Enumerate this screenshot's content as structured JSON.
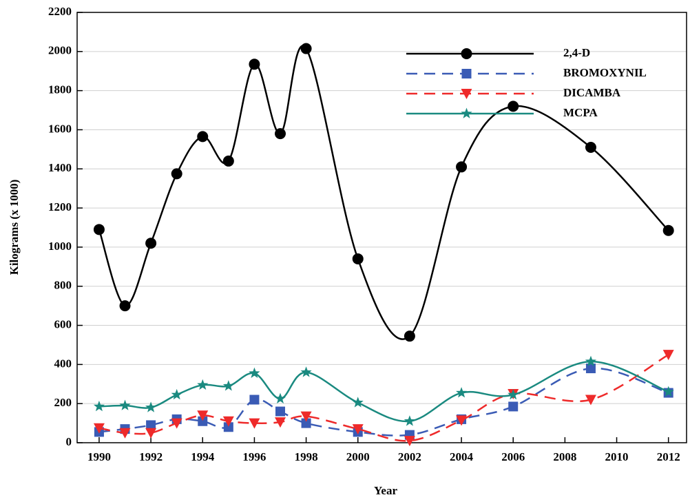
{
  "chart_data": {
    "type": "line",
    "x_label": "Year",
    "y_label": "Kilograms (x 1000)",
    "x": [
      1990,
      1991,
      1992,
      1993,
      1994,
      1995,
      1996,
      1997,
      1998,
      2000,
      2002,
      2004,
      2006,
      2009,
      2012
    ],
    "series": [
      {
        "name": "2,4-D",
        "color": "#000000",
        "marker": "circle",
        "dash": false,
        "values": [
          1090,
          700,
          1020,
          1375,
          1565,
          1440,
          1935,
          1580,
          2015,
          940,
          545,
          1410,
          1720,
          1510,
          1085
        ]
      },
      {
        "name": "BROMOXYNIL",
        "color": "#3a5bb5",
        "marker": "square",
        "dash": true,
        "values": [
          55,
          70,
          90,
          120,
          110,
          80,
          220,
          160,
          100,
          55,
          40,
          120,
          185,
          380,
          255
        ]
      },
      {
        "name": "DICAMBA",
        "color": "#ee2a2a",
        "marker": "triangle",
        "dash": true,
        "values": [
          75,
          50,
          50,
          100,
          140,
          110,
          100,
          105,
          135,
          70,
          10,
          115,
          250,
          220,
          450
        ]
      },
      {
        "name": "MCPA",
        "color": "#1a8a80",
        "marker": "star",
        "dash": false,
        "values": [
          185,
          190,
          180,
          245,
          295,
          290,
          355,
          225,
          360,
          205,
          110,
          255,
          245,
          415,
          260
        ]
      }
    ],
    "xlim": [
      1989.15,
      2012.7
    ],
    "xticks": [
      1990,
      1992,
      1994,
      1996,
      1998,
      2000,
      2002,
      2004,
      2006,
      2008,
      2010,
      2012
    ],
    "ylim": [
      0,
      2200
    ],
    "yticks": [
      0,
      200,
      400,
      600,
      800,
      1000,
      1200,
      1400,
      1600,
      1800,
      2000,
      2200
    ],
    "grid": true,
    "legend": "upper right"
  }
}
